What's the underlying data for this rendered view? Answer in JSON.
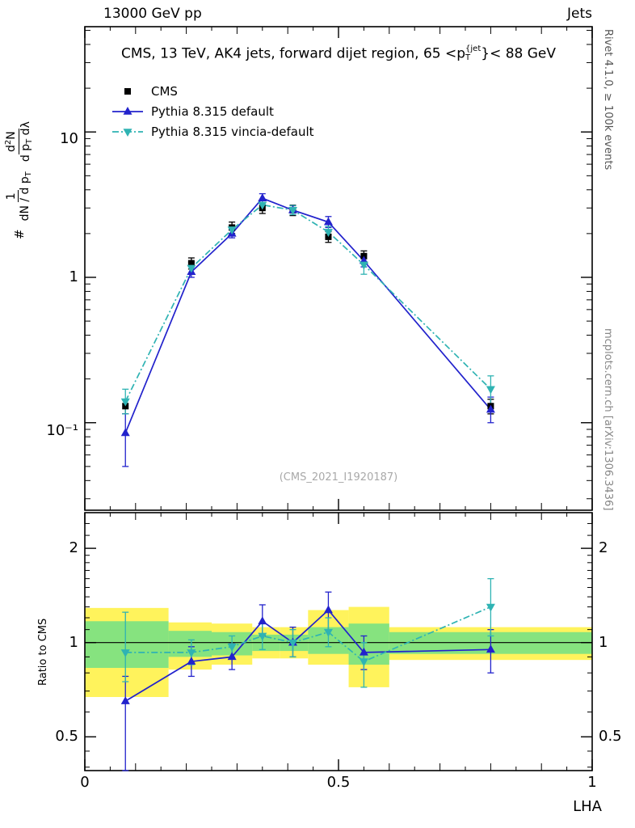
{
  "header": {
    "left": "13000 GeV pp",
    "right": "Jets"
  },
  "title": {
    "prefix": "CMS, 13 TeV, AK4 jets, forward dijet region, 65 <p",
    "sup": "{jet",
    "sub": "T",
    "suffix": "}< 88 GeV"
  },
  "watermark": "(CMS_2021_I1920187)",
  "side_notes": {
    "rivet": "Rivet 4.1.0, ≥ 100k events",
    "mcplots": "mcplots.cern.ch [arXiv:1306.3436]"
  },
  "ylabel": {
    "hash": "#",
    "f1_num": "1",
    "f1_den": "dN / d p",
    "f1_den_sub": "T",
    "f2_num_a": "d",
    "f2_num_sup": "2",
    "f2_num_b": "N",
    "f2_den_a": "d p",
    "f2_den_sub": "T",
    "f2_den_b": " dλ"
  },
  "ratio_label": "Ratio to CMS",
  "xlabel": "LHA",
  "legend": [
    {
      "label": "CMS",
      "marker": "square",
      "color": "#000000",
      "line": null
    },
    {
      "label": "Pythia 8.315 default",
      "marker": "triangle-up",
      "color": "#2222cc",
      "line": "solid"
    },
    {
      "label": "Pythia 8.315 vincia-default",
      "marker": "triangle-down",
      "color": "#2fb3b3",
      "line": "dashdot"
    }
  ],
  "axes": {
    "x": {
      "min": 0,
      "max": 1,
      "tick_labels": [
        "0",
        "0.5",
        "1"
      ],
      "major_ticks": [
        0,
        0.5,
        1
      ]
    },
    "y_main": {
      "scale": "log",
      "tick_labels": [
        "10",
        "1",
        "10⁻¹"
      ],
      "major_ticks": [
        10,
        1,
        0.1
      ]
    },
    "y_ratio": {
      "scale": "log",
      "tick_labels": [
        "2",
        "1",
        "0.5"
      ],
      "major_ticks": [
        2,
        1,
        0.5
      ]
    }
  },
  "chart_data": [
    {
      "type": "line",
      "panel": "main",
      "title": "CMS, 13 TeV, AK4 jets, forward dijet region, 65 < p_T^{jet} < 88 GeV",
      "xlabel": "LHA",
      "ylabel": "1/(dN/dp_T) d^2N/(dp_T dλ)",
      "yscale": "log",
      "xlim": [
        0,
        1
      ],
      "ylim": [
        0.025,
        53
      ],
      "x": [
        0.08,
        0.21,
        0.29,
        0.35,
        0.41,
        0.48,
        0.55,
        0.8
      ],
      "series": [
        {
          "name": "CMS",
          "marker": "square",
          "color": "#000000",
          "line": null,
          "values": [
            0.13,
            1.25,
            2.2,
            3.0,
            2.9,
            1.9,
            1.4,
            0.13
          ],
          "err_lo": [
            0.115,
            1.14,
            2.0,
            2.75,
            2.66,
            1.74,
            1.28,
            0.115
          ],
          "err_hi": [
            0.145,
            1.36,
            2.4,
            3.25,
            3.14,
            2.06,
            1.52,
            0.145
          ]
        },
        {
          "name": "Pythia 8.315 default",
          "marker": "triangle-up",
          "color": "#2222cc",
          "line": "solid",
          "values": [
            0.085,
            1.09,
            2.0,
            3.5,
            2.9,
            2.4,
            1.3,
            0.123
          ],
          "err_lo": [
            0.05,
            1.0,
            1.87,
            3.25,
            2.7,
            2.2,
            1.18,
            0.1
          ],
          "err_hi": [
            0.115,
            1.18,
            2.14,
            3.76,
            3.12,
            2.62,
            1.43,
            0.15
          ]
        },
        {
          "name": "Pythia 8.315 vincia-default",
          "marker": "triangle-down",
          "color": "#2fb3b3",
          "line": "dashdot",
          "values": [
            0.14,
            1.16,
            2.13,
            3.15,
            2.9,
            2.05,
            1.22,
            0.17
          ],
          "err_lo": [
            0.115,
            1.06,
            1.98,
            2.92,
            2.7,
            1.88,
            1.05,
            0.135
          ],
          "err_hi": [
            0.17,
            1.27,
            2.29,
            3.4,
            3.12,
            2.24,
            1.42,
            0.21
          ]
        }
      ]
    },
    {
      "type": "ratio",
      "panel": "ratio",
      "ylabel": "Ratio to CMS",
      "yscale": "log",
      "xlim": [
        0,
        1
      ],
      "ylim": [
        0.39,
        2.6
      ],
      "reference": 1,
      "band_edges": [
        0,
        0.165,
        0.25,
        0.33,
        0.385,
        0.44,
        0.52,
        0.6,
        1.0
      ],
      "bands": [
        {
          "name": "CMS total uncertainty",
          "color": "#fff35c",
          "lo": [
            0.67,
            0.82,
            0.85,
            0.89,
            0.89,
            0.85,
            0.72,
            0.88
          ],
          "hi": [
            1.29,
            1.16,
            1.15,
            1.12,
            1.12,
            1.27,
            1.3,
            1.12
          ]
        },
        {
          "name": "CMS statistical uncertainty",
          "color": "#86e37f",
          "lo": [
            0.83,
            0.9,
            0.91,
            0.94,
            0.94,
            0.92,
            0.85,
            0.92
          ],
          "hi": [
            1.17,
            1.09,
            1.08,
            1.06,
            1.06,
            1.12,
            1.15,
            1.08
          ]
        }
      ],
      "x": [
        0.08,
        0.21,
        0.29,
        0.35,
        0.41,
        0.48,
        0.55,
        0.8
      ],
      "series": [
        {
          "name": "Pythia 8.315 default",
          "marker": "triangle-up",
          "color": "#2222cc",
          "line": "solid",
          "values": [
            0.65,
            0.87,
            0.9,
            1.17,
            1.0,
            1.27,
            0.93,
            0.95
          ],
          "err_lo": [
            0.38,
            0.78,
            0.82,
            1.05,
            0.9,
            1.1,
            0.82,
            0.8
          ],
          "err_hi": [
            0.78,
            0.97,
            0.99,
            1.32,
            1.12,
            1.45,
            1.05,
            1.1
          ]
        },
        {
          "name": "Pythia 8.315 vincia-default",
          "marker": "triangle-down",
          "color": "#2fb3b3",
          "line": "dashdot",
          "values": [
            0.93,
            0.93,
            0.97,
            1.05,
            1.0,
            1.08,
            0.87,
            1.3
          ],
          "err_lo": [
            0.75,
            0.85,
            0.9,
            0.95,
            0.9,
            0.97,
            0.72,
            1.05
          ],
          "err_hi": [
            1.25,
            1.02,
            1.05,
            1.15,
            1.1,
            1.2,
            1.0,
            1.6
          ]
        }
      ]
    }
  ]
}
